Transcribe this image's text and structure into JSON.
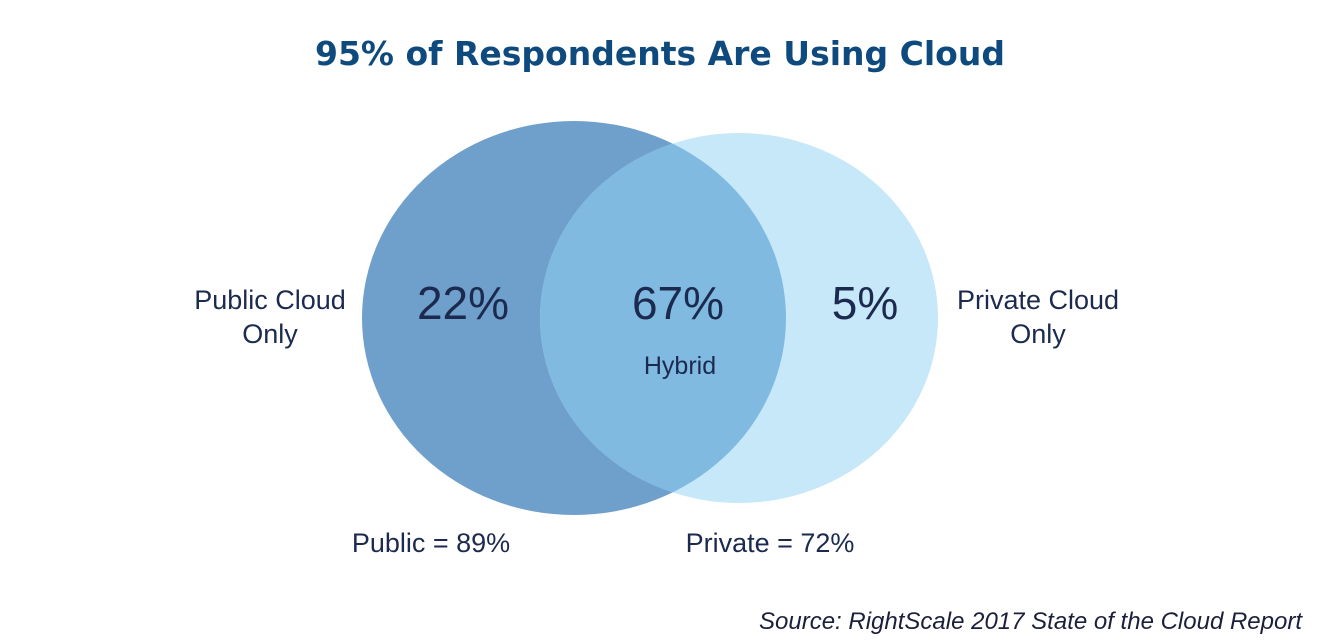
{
  "title": "95% of Respondents Are Using Cloud",
  "colors": {
    "title": "#0e4a7e",
    "text": "#1b2a4e",
    "public_circle": "#6f9fcb",
    "private_circle": "#c6e8f8",
    "overlap": "#80bae0"
  },
  "venn": {
    "public_only": {
      "label_line1": "Public Cloud",
      "label_line2": "Only",
      "percent": "22%"
    },
    "hybrid": {
      "percent": "67%",
      "label": "Hybrid"
    },
    "private_only": {
      "label_line1": "Private Cloud",
      "label_line2": "Only",
      "percent": "5%"
    },
    "public_total": "Public = 89%",
    "private_total": "Private = 72%"
  },
  "source": "Source: RightScale 2017 State of the Cloud Report"
}
